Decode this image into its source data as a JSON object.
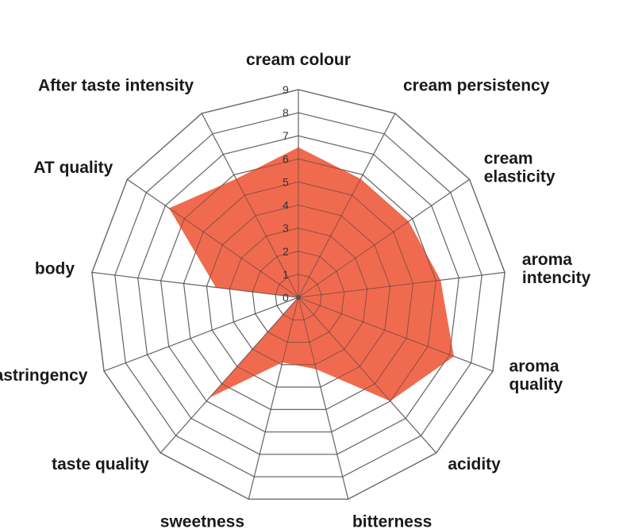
{
  "chart_data": {
    "type": "radar",
    "title": "",
    "axes": [
      [
        "cream colour"
      ],
      [
        "cream persistency"
      ],
      [
        "cream",
        "elasticity"
      ],
      [
        "aroma",
        "intencity"
      ],
      [
        "aroma",
        "quality"
      ],
      [
        "acidity"
      ],
      [
        "bitterness"
      ],
      [
        "sweetness"
      ],
      [
        "taste quality"
      ],
      [
        "astringency"
      ],
      [
        "body"
      ],
      [
        "AT quality"
      ],
      [
        "After taste intensity"
      ]
    ],
    "rmin": 0,
    "rmax": 9,
    "ticks": [
      "0",
      "1",
      "2",
      "3",
      "4",
      "5",
      "6",
      "7",
      "8",
      "9"
    ],
    "grid": true,
    "legend": "none",
    "series": [
      {
        "values": [
          6.5,
          5.8,
          5.8,
          6.2,
          7.2,
          6.0,
          3.2,
          2.9,
          5.8,
          0.0,
          3.6,
          6.8,
          5.8
        ],
        "color": "#f06a4f"
      }
    ],
    "grid_color": "#9a9a9a",
    "center_dot_color": "#555555"
  }
}
